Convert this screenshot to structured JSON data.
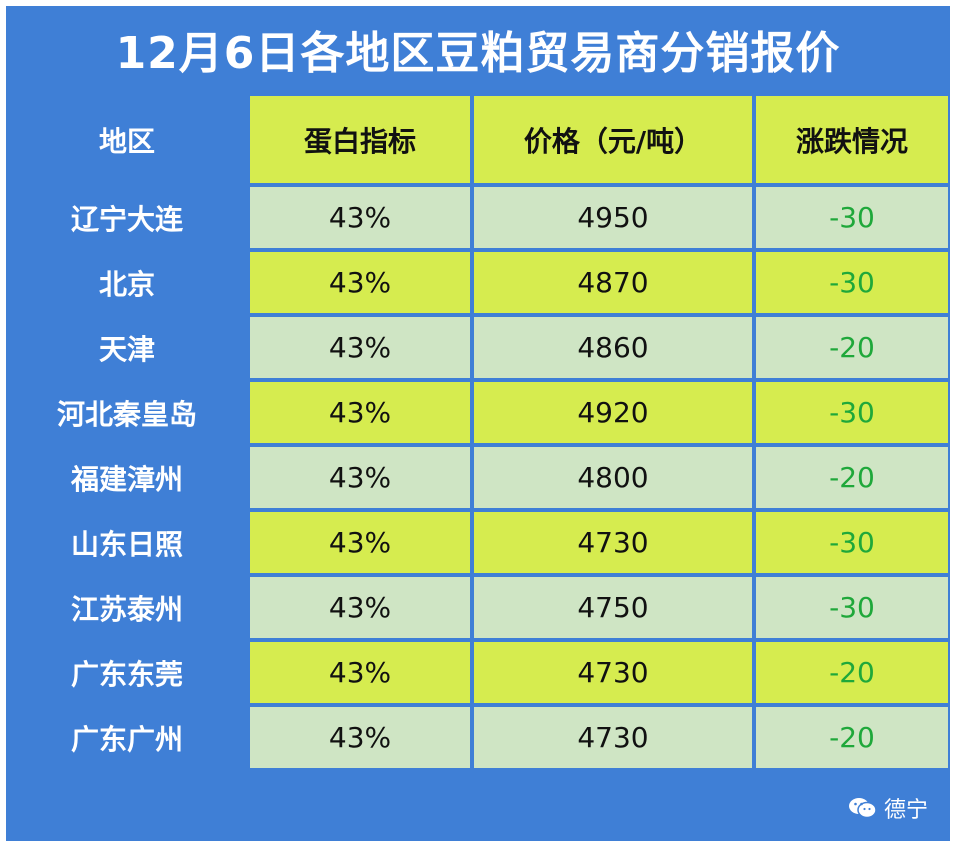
{
  "title": "12月6日各地区豆粕贸易商分销报价",
  "columns": [
    "地区",
    "蛋白指标",
    "价格（元/吨）",
    "涨跌情况"
  ],
  "rows": [
    {
      "region": "辽宁大连",
      "protein": "43%",
      "price": "4950",
      "change": "-30"
    },
    {
      "region": "北京",
      "protein": "43%",
      "price": "4870",
      "change": "-30"
    },
    {
      "region": "天津",
      "protein": "43%",
      "price": "4860",
      "change": "-20"
    },
    {
      "region": "河北秦皇岛",
      "protein": "43%",
      "price": "4920",
      "change": "-30"
    },
    {
      "region": "福建漳州",
      "protein": "43%",
      "price": "4800",
      "change": "-20"
    },
    {
      "region": "山东日照",
      "protein": "43%",
      "price": "4730",
      "change": "-30"
    },
    {
      "region": "江苏泰州",
      "protein": "43%",
      "price": "4750",
      "change": "-30"
    },
    {
      "region": "广东东莞",
      "protein": "43%",
      "price": "4730",
      "change": "-20"
    },
    {
      "region": "广东广州",
      "protein": "43%",
      "price": "4730",
      "change": "-20"
    }
  ],
  "watermark": {
    "icon": "wechat-icon",
    "text": "德宁"
  },
  "colors": {
    "frame_blue": "#3f7fd6",
    "header_yellow": "#d6ec4f",
    "row_light_green": "#cfe5c4",
    "change_green": "#1fa83a"
  }
}
